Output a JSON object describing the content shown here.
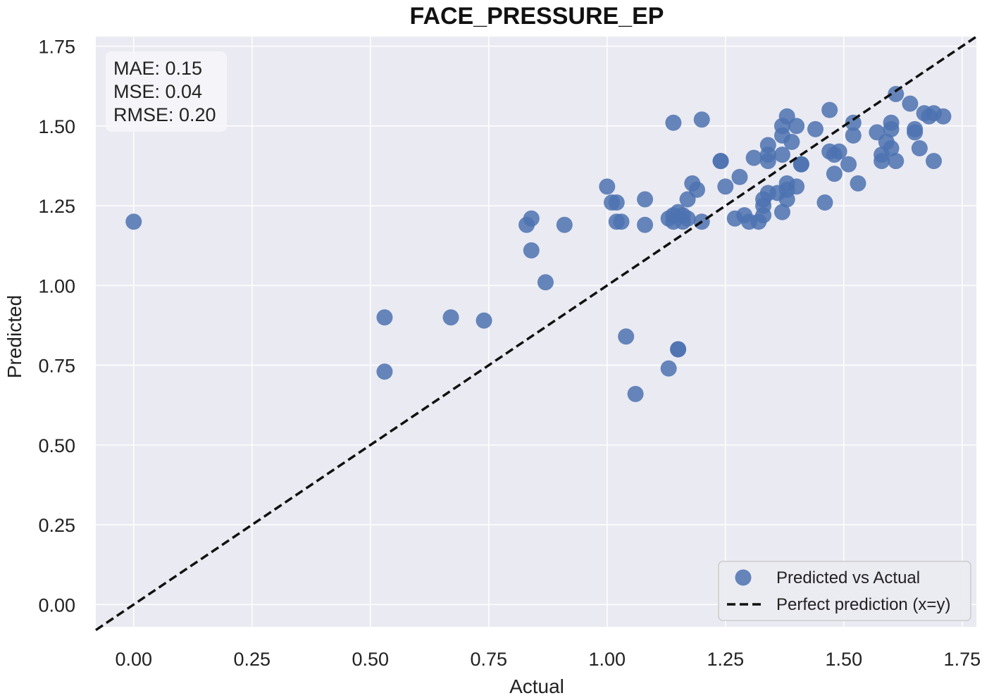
{
  "chart_data": {
    "type": "scatter",
    "title": "FACE_PRESSURE_EP",
    "xlabel": "Actual",
    "ylabel": "Predicted",
    "xlim": [
      -0.08,
      1.78
    ],
    "ylim": [
      -0.07,
      1.78
    ],
    "xticks": [
      "0.00",
      "0.25",
      "0.50",
      "0.75",
      "1.00",
      "1.25",
      "1.50",
      "1.75"
    ],
    "yticks": [
      "0.00",
      "0.25",
      "0.50",
      "0.75",
      "1.00",
      "1.25",
      "1.50",
      "1.75"
    ],
    "grid": true,
    "legend_position": "bottom-right",
    "stats": [
      "MAE: 0.15",
      "MSE: 0.04",
      "RMSE: 0.20"
    ],
    "colors": {
      "points": "#4c72b0",
      "background": "#eaeaf2",
      "grid": "#ffffff",
      "line": "#111111"
    },
    "series": [
      {
        "name": "Predicted vs Actual",
        "kind": "points",
        "points": [
          [
            0.0,
            1.2
          ],
          [
            0.53,
            0.9
          ],
          [
            0.53,
            0.73
          ],
          [
            0.67,
            0.9
          ],
          [
            0.74,
            0.89
          ],
          [
            0.83,
            1.19
          ],
          [
            0.84,
            1.21
          ],
          [
            0.84,
            1.11
          ],
          [
            0.87,
            1.01
          ],
          [
            0.91,
            1.19
          ],
          [
            1.0,
            1.31
          ],
          [
            1.01,
            1.26
          ],
          [
            1.02,
            1.26
          ],
          [
            1.02,
            1.2
          ],
          [
            1.03,
            1.2
          ],
          [
            1.04,
            0.84
          ],
          [
            1.06,
            0.66
          ],
          [
            1.08,
            1.27
          ],
          [
            1.08,
            1.19
          ],
          [
            1.13,
            0.74
          ],
          [
            1.13,
            1.21
          ],
          [
            1.14,
            1.22
          ],
          [
            1.14,
            1.2
          ],
          [
            1.15,
            0.8
          ],
          [
            1.15,
            0.8
          ],
          [
            1.14,
            1.51
          ],
          [
            1.15,
            1.23
          ],
          [
            1.16,
            1.22
          ],
          [
            1.16,
            1.2
          ],
          [
            1.17,
            1.21
          ],
          [
            1.17,
            1.27
          ],
          [
            1.18,
            1.32
          ],
          [
            1.19,
            1.3
          ],
          [
            1.2,
            1.52
          ],
          [
            1.2,
            1.2
          ],
          [
            1.24,
            1.39
          ],
          [
            1.24,
            1.39
          ],
          [
            1.25,
            1.31
          ],
          [
            1.27,
            1.21
          ],
          [
            1.28,
            1.34
          ],
          [
            1.29,
            1.22
          ],
          [
            1.3,
            1.2
          ],
          [
            1.31,
            1.4
          ],
          [
            1.32,
            1.2
          ],
          [
            1.33,
            1.22
          ],
          [
            1.33,
            1.25
          ],
          [
            1.33,
            1.27
          ],
          [
            1.34,
            1.29
          ],
          [
            1.34,
            1.39
          ],
          [
            1.34,
            1.41
          ],
          [
            1.34,
            1.44
          ],
          [
            1.36,
            1.29
          ],
          [
            1.37,
            1.23
          ],
          [
            1.37,
            1.41
          ],
          [
            1.37,
            1.47
          ],
          [
            1.37,
            1.5
          ],
          [
            1.38,
            1.27
          ],
          [
            1.38,
            1.3
          ],
          [
            1.38,
            1.32
          ],
          [
            1.38,
            1.53
          ],
          [
            1.39,
            1.45
          ],
          [
            1.4,
            1.31
          ],
          [
            1.4,
            1.5
          ],
          [
            1.41,
            1.38
          ],
          [
            1.41,
            1.38
          ],
          [
            1.44,
            1.49
          ],
          [
            1.46,
            1.26
          ],
          [
            1.47,
            1.42
          ],
          [
            1.47,
            1.55
          ],
          [
            1.48,
            1.41
          ],
          [
            1.48,
            1.35
          ],
          [
            1.49,
            1.42
          ],
          [
            1.51,
            1.38
          ],
          [
            1.52,
            1.47
          ],
          [
            1.52,
            1.51
          ],
          [
            1.53,
            1.32
          ],
          [
            1.57,
            1.48
          ],
          [
            1.58,
            1.39
          ],
          [
            1.58,
            1.41
          ],
          [
            1.59,
            1.45
          ],
          [
            1.6,
            1.43
          ],
          [
            1.6,
            1.51
          ],
          [
            1.6,
            1.49
          ],
          [
            1.61,
            1.39
          ],
          [
            1.61,
            1.6
          ],
          [
            1.64,
            1.57
          ],
          [
            1.65,
            1.48
          ],
          [
            1.65,
            1.49
          ],
          [
            1.66,
            1.43
          ],
          [
            1.67,
            1.54
          ],
          [
            1.68,
            1.53
          ],
          [
            1.69,
            1.54
          ],
          [
            1.69,
            1.39
          ],
          [
            1.71,
            1.53
          ]
        ]
      },
      {
        "name": "Perfect prediction (x=y)",
        "kind": "line",
        "points": [
          [
            -0.08,
            -0.08
          ],
          [
            1.78,
            1.78
          ]
        ]
      }
    ]
  }
}
